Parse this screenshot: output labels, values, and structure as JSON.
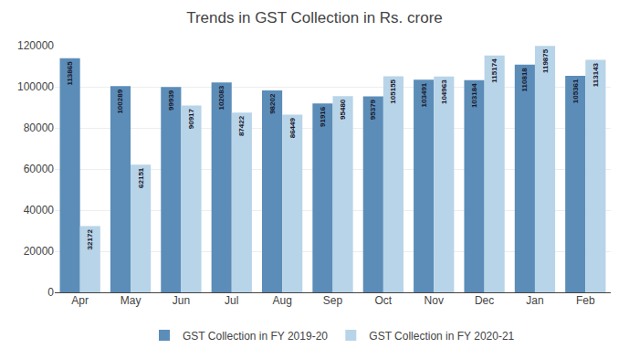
{
  "chart_data": {
    "type": "bar",
    "title": "Trends in GST Collection in Rs. crore",
    "categories": [
      "Apr",
      "May",
      "Jun",
      "Jul",
      "Aug",
      "Sep",
      "Oct",
      "Nov",
      "Dec",
      "Jan",
      "Feb"
    ],
    "series": [
      {
        "name": "GST Collection in FY 2019-20",
        "color": "#5b8db8",
        "values": [
          113865,
          100289,
          99939,
          102083,
          98202,
          91916,
          95379,
          103491,
          103184,
          110818,
          105361
        ]
      },
      {
        "name": "GST Collection in FY 2020-21",
        "color": "#b8d4e8",
        "values": [
          32172,
          62151,
          90917,
          87422,
          86449,
          95480,
          105155,
          104963,
          115174,
          119875,
          113143
        ]
      }
    ],
    "ylim": [
      0,
      120000
    ],
    "yticks": [
      0,
      20000,
      40000,
      60000,
      80000,
      100000,
      120000
    ],
    "grid": "y",
    "legend": "bottom",
    "data_labels": true
  }
}
